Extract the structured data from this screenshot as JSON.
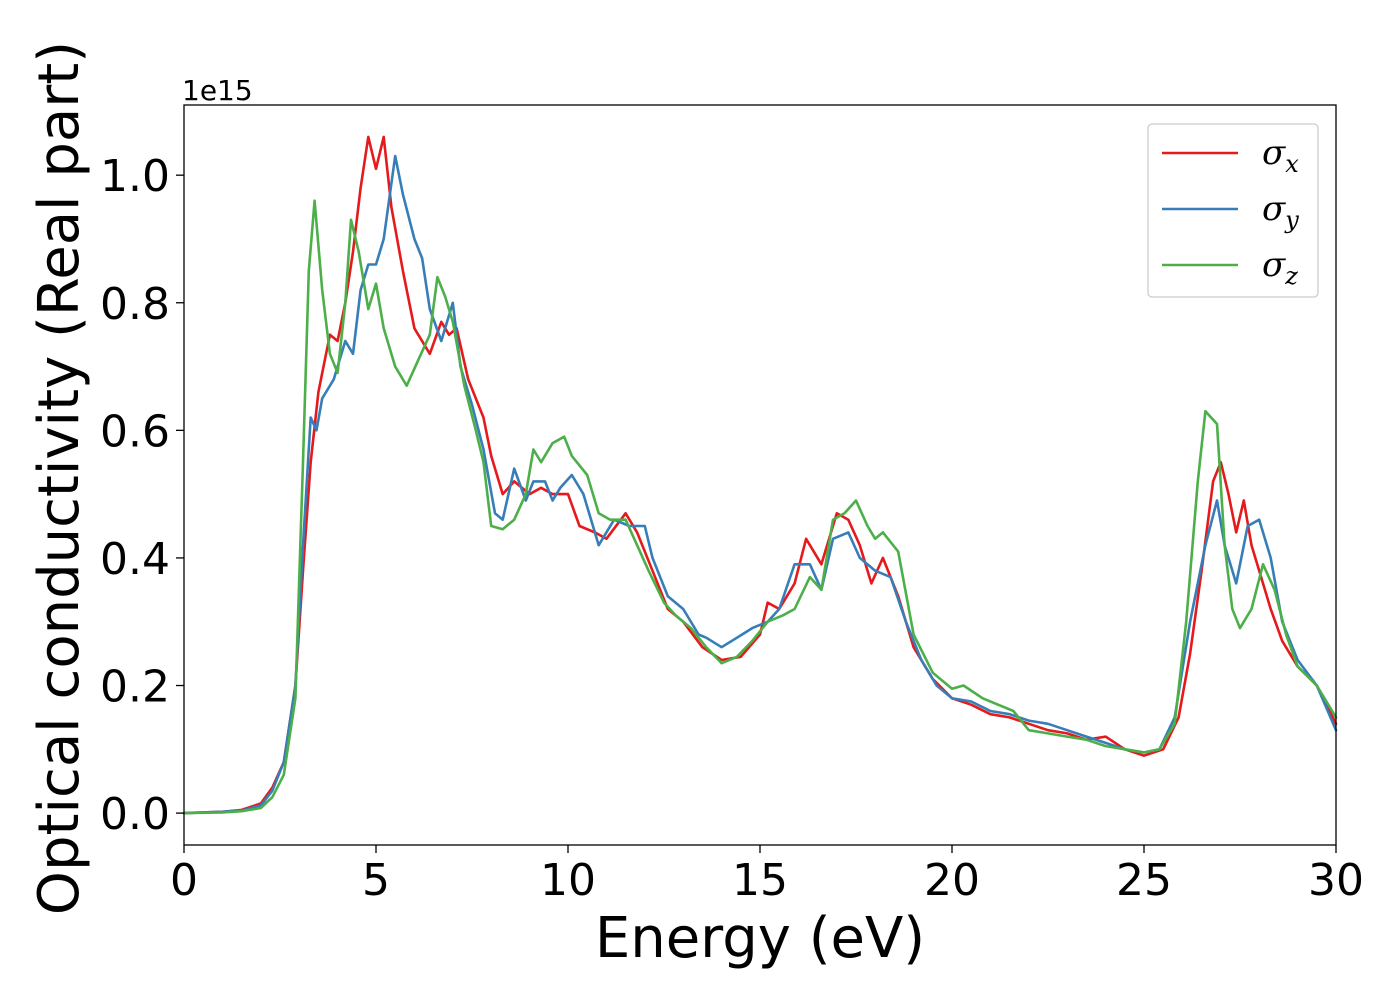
{
  "chart_data": {
    "type": "line",
    "xlabel": "Energy (eV)",
    "ylabel": "Optical conductivity (Real part)",
    "y_offset_text": "1e15",
    "xlim": [
      0,
      30
    ],
    "ylim": [
      -0.05,
      1.11
    ],
    "x_ticks": [
      0,
      5,
      10,
      15,
      20,
      25,
      30
    ],
    "y_ticks": [
      0.0,
      0.2,
      0.4,
      0.6,
      0.8,
      1.0
    ],
    "x_tick_labels": [
      "0",
      "5",
      "10",
      "15",
      "20",
      "25",
      "30"
    ],
    "y_tick_labels": [
      "0.0",
      "0.2",
      "0.4",
      "0.6",
      "0.8",
      "1.0"
    ],
    "legend_position": "top-right",
    "grid": false,
    "series": [
      {
        "name": "σ",
        "subscript": "x",
        "color": "#e41a1c",
        "points": [
          [
            0,
            0
          ],
          [
            1,
            0.002
          ],
          [
            1.5,
            0.005
          ],
          [
            2,
            0.015
          ],
          [
            2.3,
            0.04
          ],
          [
            2.6,
            0.08
          ],
          [
            2.9,
            0.2
          ],
          [
            3.1,
            0.38
          ],
          [
            3.3,
            0.55
          ],
          [
            3.5,
            0.66
          ],
          [
            3.8,
            0.75
          ],
          [
            4.0,
            0.74
          ],
          [
            4.2,
            0.8
          ],
          [
            4.4,
            0.88
          ],
          [
            4.6,
            0.98
          ],
          [
            4.8,
            1.06
          ],
          [
            5.0,
            1.01
          ],
          [
            5.2,
            1.06
          ],
          [
            5.4,
            0.95
          ],
          [
            5.7,
            0.85
          ],
          [
            6.0,
            0.76
          ],
          [
            6.4,
            0.72
          ],
          [
            6.7,
            0.77
          ],
          [
            6.9,
            0.75
          ],
          [
            7.1,
            0.76
          ],
          [
            7.4,
            0.68
          ],
          [
            7.8,
            0.62
          ],
          [
            8.0,
            0.56
          ],
          [
            8.3,
            0.5
          ],
          [
            8.6,
            0.52
          ],
          [
            9.0,
            0.5
          ],
          [
            9.3,
            0.51
          ],
          [
            9.6,
            0.5
          ],
          [
            10.0,
            0.5
          ],
          [
            10.3,
            0.45
          ],
          [
            10.7,
            0.44
          ],
          [
            11.0,
            0.43
          ],
          [
            11.5,
            0.47
          ],
          [
            11.8,
            0.44
          ],
          [
            12.2,
            0.38
          ],
          [
            12.6,
            0.32
          ],
          [
            13.0,
            0.3
          ],
          [
            13.5,
            0.26
          ],
          [
            14.0,
            0.24
          ],
          [
            14.5,
            0.245
          ],
          [
            15.0,
            0.28
          ],
          [
            15.2,
            0.33
          ],
          [
            15.5,
            0.32
          ],
          [
            15.9,
            0.36
          ],
          [
            16.2,
            0.43
          ],
          [
            16.6,
            0.39
          ],
          [
            17.0,
            0.47
          ],
          [
            17.3,
            0.46
          ],
          [
            17.6,
            0.42
          ],
          [
            17.9,
            0.36
          ],
          [
            18.2,
            0.4
          ],
          [
            18.6,
            0.34
          ],
          [
            19.0,
            0.26
          ],
          [
            19.5,
            0.21
          ],
          [
            20.0,
            0.18
          ],
          [
            20.5,
            0.17
          ],
          [
            21.0,
            0.155
          ],
          [
            21.5,
            0.15
          ],
          [
            22.0,
            0.14
          ],
          [
            22.5,
            0.13
          ],
          [
            23.0,
            0.125
          ],
          [
            23.5,
            0.115
          ],
          [
            24.0,
            0.12
          ],
          [
            24.5,
            0.1
          ],
          [
            25.0,
            0.09
          ],
          [
            25.5,
            0.1
          ],
          [
            25.9,
            0.15
          ],
          [
            26.2,
            0.25
          ],
          [
            26.5,
            0.38
          ],
          [
            26.8,
            0.52
          ],
          [
            27.0,
            0.55
          ],
          [
            27.2,
            0.5
          ],
          [
            27.4,
            0.44
          ],
          [
            27.6,
            0.49
          ],
          [
            27.8,
            0.42
          ],
          [
            28.0,
            0.38
          ],
          [
            28.3,
            0.32
          ],
          [
            28.6,
            0.27
          ],
          [
            29.0,
            0.23
          ],
          [
            29.5,
            0.2
          ],
          [
            30.0,
            0.14
          ]
        ]
      },
      {
        "name": "σ",
        "subscript": "y",
        "color": "#377eb8",
        "points": [
          [
            0,
            0
          ],
          [
            1,
            0.002
          ],
          [
            1.5,
            0.004
          ],
          [
            2,
            0.012
          ],
          [
            2.3,
            0.035
          ],
          [
            2.6,
            0.08
          ],
          [
            2.9,
            0.2
          ],
          [
            3.1,
            0.42
          ],
          [
            3.3,
            0.62
          ],
          [
            3.45,
            0.6
          ],
          [
            3.6,
            0.65
          ],
          [
            3.9,
            0.68
          ],
          [
            4.2,
            0.74
          ],
          [
            4.4,
            0.72
          ],
          [
            4.6,
            0.82
          ],
          [
            4.8,
            0.86
          ],
          [
            5.0,
            0.86
          ],
          [
            5.2,
            0.9
          ],
          [
            5.5,
            1.03
          ],
          [
            5.7,
            0.97
          ],
          [
            6.0,
            0.9
          ],
          [
            6.2,
            0.87
          ],
          [
            6.4,
            0.79
          ],
          [
            6.7,
            0.74
          ],
          [
            7.0,
            0.8
          ],
          [
            7.2,
            0.7
          ],
          [
            7.5,
            0.64
          ],
          [
            7.8,
            0.57
          ],
          [
            8.1,
            0.47
          ],
          [
            8.3,
            0.46
          ],
          [
            8.6,
            0.54
          ],
          [
            8.9,
            0.49
          ],
          [
            9.1,
            0.52
          ],
          [
            9.4,
            0.52
          ],
          [
            9.6,
            0.49
          ],
          [
            9.8,
            0.51
          ],
          [
            10.1,
            0.53
          ],
          [
            10.4,
            0.5
          ],
          [
            10.8,
            0.42
          ],
          [
            11.2,
            0.46
          ],
          [
            11.6,
            0.45
          ],
          [
            12.0,
            0.45
          ],
          [
            12.2,
            0.4
          ],
          [
            12.6,
            0.34
          ],
          [
            13.0,
            0.32
          ],
          [
            13.4,
            0.28
          ],
          [
            13.6,
            0.275
          ],
          [
            14.0,
            0.26
          ],
          [
            14.4,
            0.275
          ],
          [
            14.8,
            0.29
          ],
          [
            15.2,
            0.3
          ],
          [
            15.5,
            0.32
          ],
          [
            15.9,
            0.39
          ],
          [
            16.3,
            0.39
          ],
          [
            16.6,
            0.35
          ],
          [
            16.9,
            0.43
          ],
          [
            17.3,
            0.44
          ],
          [
            17.6,
            0.4
          ],
          [
            18.0,
            0.38
          ],
          [
            18.4,
            0.37
          ],
          [
            18.8,
            0.3
          ],
          [
            19.2,
            0.24
          ],
          [
            19.6,
            0.2
          ],
          [
            20.0,
            0.18
          ],
          [
            20.5,
            0.175
          ],
          [
            21.0,
            0.16
          ],
          [
            21.5,
            0.155
          ],
          [
            22.0,
            0.145
          ],
          [
            22.5,
            0.14
          ],
          [
            23.0,
            0.13
          ],
          [
            23.5,
            0.12
          ],
          [
            24.0,
            0.11
          ],
          [
            24.5,
            0.1
          ],
          [
            25.0,
            0.095
          ],
          [
            25.4,
            0.1
          ],
          [
            25.8,
            0.15
          ],
          [
            26.2,
            0.3
          ],
          [
            26.6,
            0.42
          ],
          [
            26.9,
            0.49
          ],
          [
            27.1,
            0.42
          ],
          [
            27.4,
            0.36
          ],
          [
            27.7,
            0.45
          ],
          [
            28.0,
            0.46
          ],
          [
            28.3,
            0.4
          ],
          [
            28.6,
            0.3
          ],
          [
            29.0,
            0.24
          ],
          [
            29.5,
            0.2
          ],
          [
            30.0,
            0.13
          ]
        ]
      },
      {
        "name": "σ",
        "subscript": "z",
        "color": "#4daf4a",
        "points": [
          [
            0,
            0
          ],
          [
            1,
            0.001
          ],
          [
            1.5,
            0.003
          ],
          [
            2,
            0.008
          ],
          [
            2.3,
            0.025
          ],
          [
            2.6,
            0.06
          ],
          [
            2.9,
            0.18
          ],
          [
            3.1,
            0.55
          ],
          [
            3.25,
            0.85
          ],
          [
            3.4,
            0.96
          ],
          [
            3.6,
            0.82
          ],
          [
            3.8,
            0.72
          ],
          [
            4.0,
            0.69
          ],
          [
            4.2,
            0.8
          ],
          [
            4.35,
            0.93
          ],
          [
            4.55,
            0.88
          ],
          [
            4.8,
            0.79
          ],
          [
            5.0,
            0.83
          ],
          [
            5.2,
            0.76
          ],
          [
            5.5,
            0.7
          ],
          [
            5.8,
            0.67
          ],
          [
            6.1,
            0.71
          ],
          [
            6.4,
            0.75
          ],
          [
            6.6,
            0.84
          ],
          [
            6.8,
            0.81
          ],
          [
            7.0,
            0.77
          ],
          [
            7.3,
            0.67
          ],
          [
            7.6,
            0.6
          ],
          [
            7.8,
            0.55
          ],
          [
            8.0,
            0.45
          ],
          [
            8.3,
            0.445
          ],
          [
            8.6,
            0.46
          ],
          [
            8.9,
            0.5
          ],
          [
            9.1,
            0.57
          ],
          [
            9.3,
            0.55
          ],
          [
            9.6,
            0.58
          ],
          [
            9.9,
            0.59
          ],
          [
            10.1,
            0.56
          ],
          [
            10.5,
            0.53
          ],
          [
            10.8,
            0.47
          ],
          [
            11.1,
            0.46
          ],
          [
            11.5,
            0.46
          ],
          [
            11.8,
            0.42
          ],
          [
            12.1,
            0.38
          ],
          [
            12.5,
            0.33
          ],
          [
            12.8,
            0.31
          ],
          [
            13.2,
            0.29
          ],
          [
            13.6,
            0.26
          ],
          [
            14.0,
            0.235
          ],
          [
            14.4,
            0.245
          ],
          [
            14.8,
            0.27
          ],
          [
            15.2,
            0.3
          ],
          [
            15.6,
            0.31
          ],
          [
            15.9,
            0.32
          ],
          [
            16.3,
            0.37
          ],
          [
            16.6,
            0.35
          ],
          [
            16.9,
            0.46
          ],
          [
            17.2,
            0.47
          ],
          [
            17.5,
            0.49
          ],
          [
            17.8,
            0.45
          ],
          [
            18.0,
            0.43
          ],
          [
            18.2,
            0.44
          ],
          [
            18.6,
            0.41
          ],
          [
            19.0,
            0.28
          ],
          [
            19.5,
            0.22
          ],
          [
            20.0,
            0.195
          ],
          [
            20.3,
            0.2
          ],
          [
            20.8,
            0.18
          ],
          [
            21.2,
            0.17
          ],
          [
            21.6,
            0.16
          ],
          [
            22.0,
            0.13
          ],
          [
            22.5,
            0.125
          ],
          [
            23.0,
            0.12
          ],
          [
            23.5,
            0.115
          ],
          [
            24.0,
            0.105
          ],
          [
            24.5,
            0.1
          ],
          [
            25.0,
            0.095
          ],
          [
            25.4,
            0.1
          ],
          [
            25.8,
            0.14
          ],
          [
            26.1,
            0.3
          ],
          [
            26.4,
            0.52
          ],
          [
            26.6,
            0.63
          ],
          [
            26.9,
            0.61
          ],
          [
            27.1,
            0.42
          ],
          [
            27.3,
            0.32
          ],
          [
            27.5,
            0.29
          ],
          [
            27.8,
            0.32
          ],
          [
            28.1,
            0.39
          ],
          [
            28.4,
            0.35
          ],
          [
            28.7,
            0.28
          ],
          [
            29.0,
            0.23
          ],
          [
            29.5,
            0.2
          ],
          [
            30.0,
            0.15
          ]
        ]
      }
    ]
  }
}
